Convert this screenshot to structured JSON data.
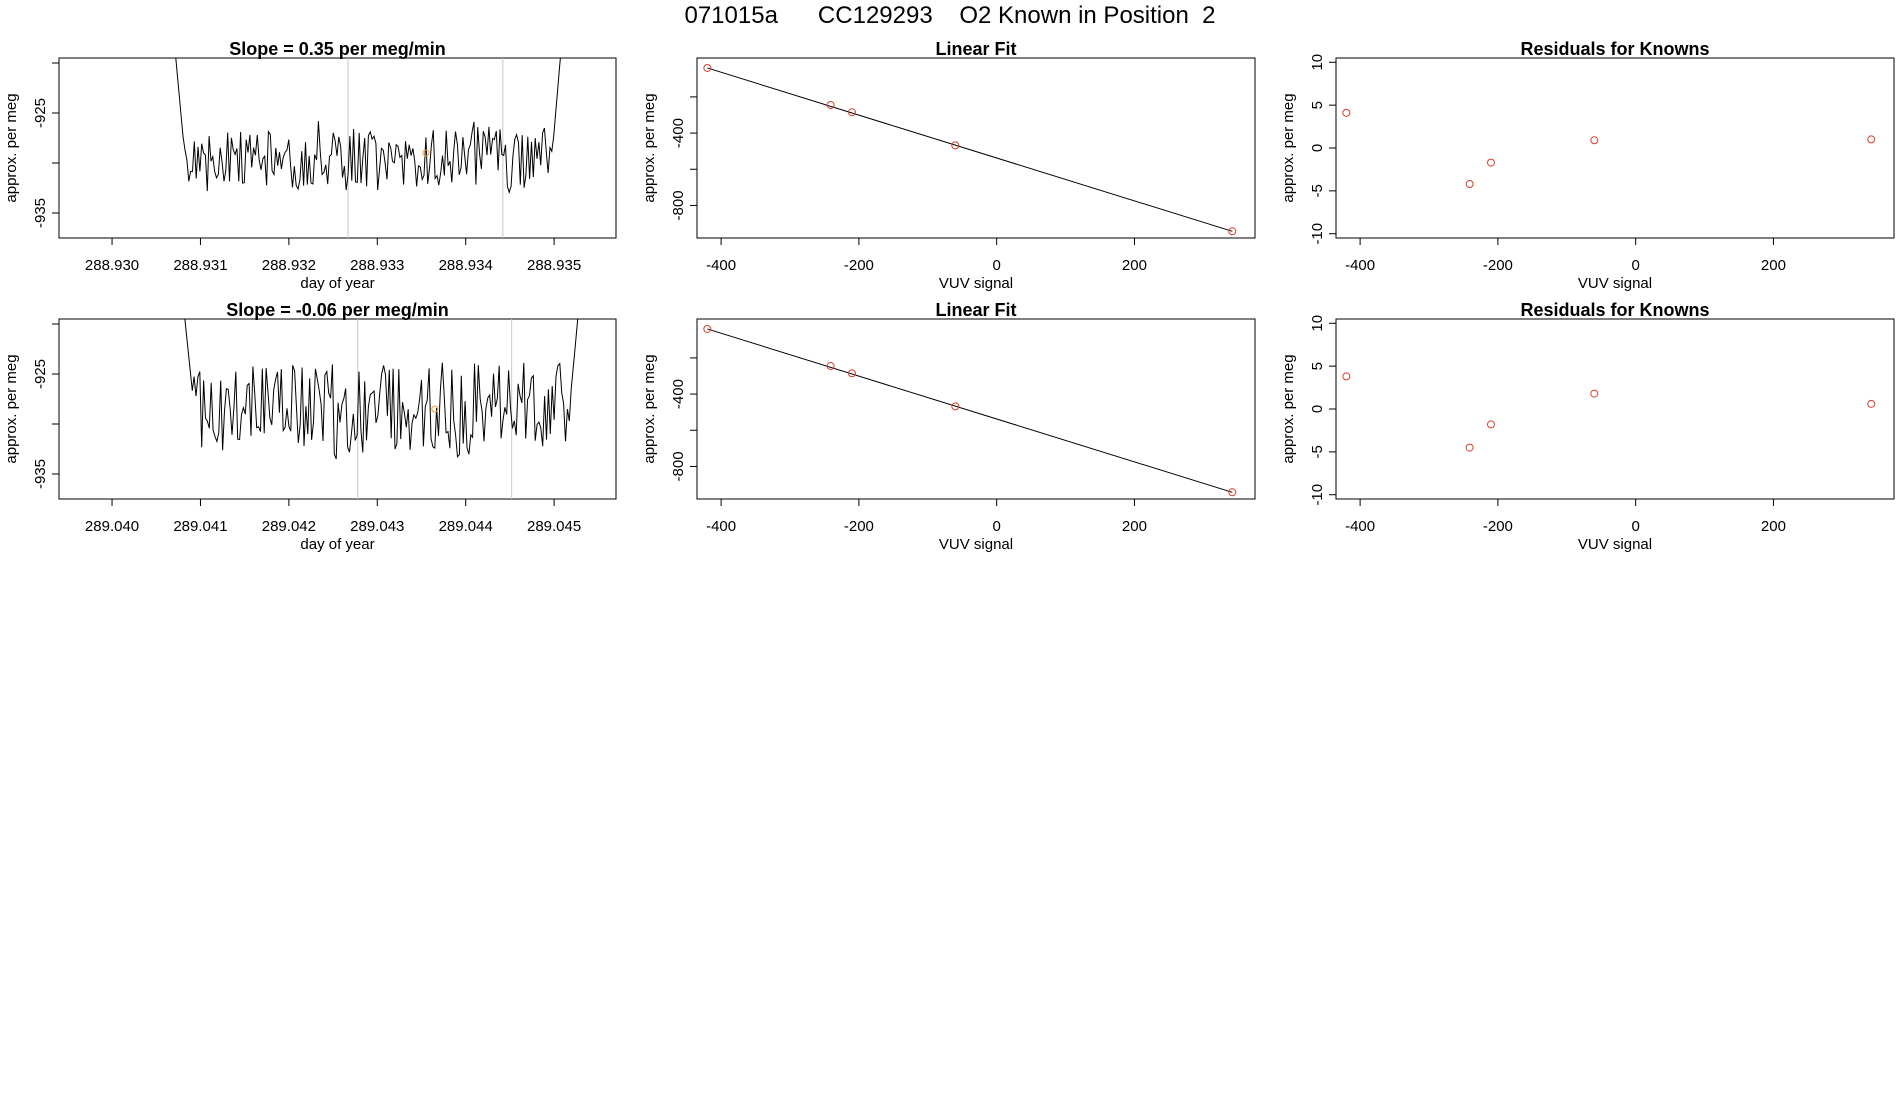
{
  "page_title": "071015a      CC129293    O2 Known in Position  2",
  "colors": {
    "line": "#000000",
    "point_red": "#d9402c",
    "point_orange": "#f0a030",
    "marker_line": "#c8c8c8"
  },
  "chart_data": [
    {
      "type": "line",
      "title": "Slope =  0.35  per meg/min",
      "xlabel": "day of year",
      "ylabel": "approx. per meg",
      "xlim": [
        288.9294,
        288.9357
      ],
      "ylim": [
        -937.5,
        -919.5
      ],
      "xticks": [
        "288.930",
        "288.931",
        "288.932",
        "288.933",
        "288.934",
        "288.935"
      ],
      "yticks": [
        "-925",
        "-935"
      ],
      "ytick_minor": [
        -920,
        -930
      ],
      "vlines": [
        288.93267,
        288.93442
      ],
      "highlight_point": {
        "x": 288.93355,
        "y": -929.0
      },
      "series_seed": 17,
      "x_start": 288.9307,
      "x_end": 288.9351,
      "y_mean": -929.5,
      "y_spread": 3.2
    },
    {
      "type": "line",
      "title": "Slope =  -0.06  per meg/min",
      "xlabel": "day of year",
      "ylabel": "approx. per meg",
      "xlim": [
        289.0394,
        289.0457
      ],
      "ylim": [
        -937.5,
        -919.5
      ],
      "xticks": [
        "289.040",
        "289.041",
        "289.042",
        "289.043",
        "289.044",
        "289.045"
      ],
      "yticks": [
        "-925",
        "-935"
      ],
      "ytick_minor": [
        -920,
        -930
      ],
      "vlines": [
        289.04278,
        289.04452
      ],
      "highlight_point": {
        "x": 289.04365,
        "y": -928.5
      },
      "series_seed": 41,
      "x_start": 289.0408,
      "x_end": 289.0453,
      "y_mean": -928.5,
      "y_spread": 4.6
    },
    {
      "type": "scatter",
      "title": "Linear Fit",
      "xlabel": "VUV signal",
      "ylabel": "approx. per meg",
      "xlim": [
        -435,
        375
      ],
      "ylim": [
        -980,
        15
      ],
      "xticks": [
        "-400",
        "-200",
        "0",
        "200"
      ],
      "yticks": [
        "-400",
        "-800"
      ],
      "ytick_minor": [
        -200,
        -600
      ],
      "points": [
        {
          "x": -420,
          "y": -40
        },
        {
          "x": -241,
          "y": -245
        },
        {
          "x": -210,
          "y": -285
        },
        {
          "x": -60,
          "y": -468
        },
        {
          "x": 342,
          "y": -943
        }
      ],
      "fit_line": [
        {
          "x": -420,
          "y": -40
        },
        {
          "x": 342,
          "y": -943
        }
      ]
    },
    {
      "type": "scatter",
      "title": "Linear Fit",
      "xlabel": "VUV signal",
      "ylabel": "approx. per meg",
      "xlim": [
        -435,
        375
      ],
      "ylim": [
        -980,
        15
      ],
      "xticks": [
        "-400",
        "-200",
        "0",
        "200"
      ],
      "yticks": [
        "-400",
        "-800"
      ],
      "ytick_minor": [
        -200,
        -600
      ],
      "points": [
        {
          "x": -420,
          "y": -40
        },
        {
          "x": -241,
          "y": -245
        },
        {
          "x": -210,
          "y": -285
        },
        {
          "x": -60,
          "y": -468
        },
        {
          "x": 342,
          "y": -943
        }
      ],
      "fit_line": [
        {
          "x": -420,
          "y": -40
        },
        {
          "x": 342,
          "y": -943
        }
      ]
    },
    {
      "type": "scatter",
      "title": "Residuals for Knowns",
      "xlabel": "VUV signal",
      "ylabel": "approx. per meg",
      "xlim": [
        -435,
        375
      ],
      "ylim": [
        -10.5,
        10.5
      ],
      "xticks": [
        "-400",
        "-200",
        "0",
        "200"
      ],
      "yticks": [
        "10",
        "5",
        "0",
        "-5",
        "-10"
      ],
      "ytick_minor": [],
      "points": [
        {
          "x": -420,
          "y": 4.1
        },
        {
          "x": -241,
          "y": -4.2
        },
        {
          "x": -210,
          "y": -1.7
        },
        {
          "x": -60,
          "y": 0.9
        },
        {
          "x": 342,
          "y": 1.0
        }
      ]
    },
    {
      "type": "scatter",
      "title": "Residuals for Knowns",
      "xlabel": "VUV signal",
      "ylabel": "approx. per meg",
      "xlim": [
        -435,
        375
      ],
      "ylim": [
        -10.5,
        10.5
      ],
      "xticks": [
        "-400",
        "-200",
        "0",
        "200"
      ],
      "yticks": [
        "10",
        "5",
        "0",
        "-5",
        "-10"
      ],
      "ytick_minor": [],
      "points": [
        {
          "x": -420,
          "y": 3.8
        },
        {
          "x": -241,
          "y": -4.5
        },
        {
          "x": -210,
          "y": -1.8
        },
        {
          "x": -60,
          "y": 1.8
        },
        {
          "x": 342,
          "y": 0.6
        }
      ]
    }
  ]
}
